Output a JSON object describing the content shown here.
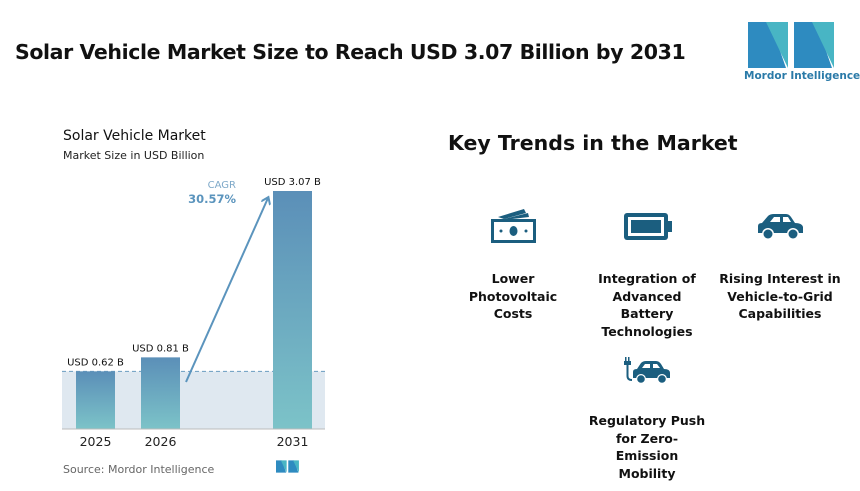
{
  "header": {
    "title": "Solar Vehicle Market Size to Reach USD 3.07 Billion by 2031",
    "logo_text": "Mordor Intelligence"
  },
  "chart_data": {
    "type": "bar",
    "title": "Solar Vehicle Market",
    "subtitle": "Market Size in USD Billion",
    "categories": [
      "2025",
      "2026",
      "2031"
    ],
    "values": [
      0.62,
      0.81,
      3.07
    ],
    "data_labels": [
      "USD 0.62 B",
      "USD 0.81 B",
      "USD 3.07 B"
    ],
    "cagr_label": "CAGR",
    "cagr_value": "30.57%",
    "bar_color_top": "#5b8fb8",
    "bar_color_bottom": "#7cc3c8",
    "source": "Source:  Mordor Intelligence"
  },
  "trends": {
    "heading": "Key Trends in the Market",
    "icon_color": "#1b5e7f",
    "items": [
      {
        "icon": "money-icon",
        "label": [
          "Lower",
          "Photovoltaic",
          "Costs"
        ]
      },
      {
        "icon": "battery-icon",
        "label": [
          "Integration of",
          "Advanced",
          "Battery",
          "Technologies"
        ]
      },
      {
        "icon": "car-icon",
        "label": [
          "Rising Interest in",
          "Vehicle-to-Grid",
          "Capabilities"
        ]
      },
      {
        "icon": "electric-car-icon",
        "label": [
          "Regulatory Push",
          "for Zero-",
          "Emission",
          "Mobility"
        ]
      }
    ]
  }
}
